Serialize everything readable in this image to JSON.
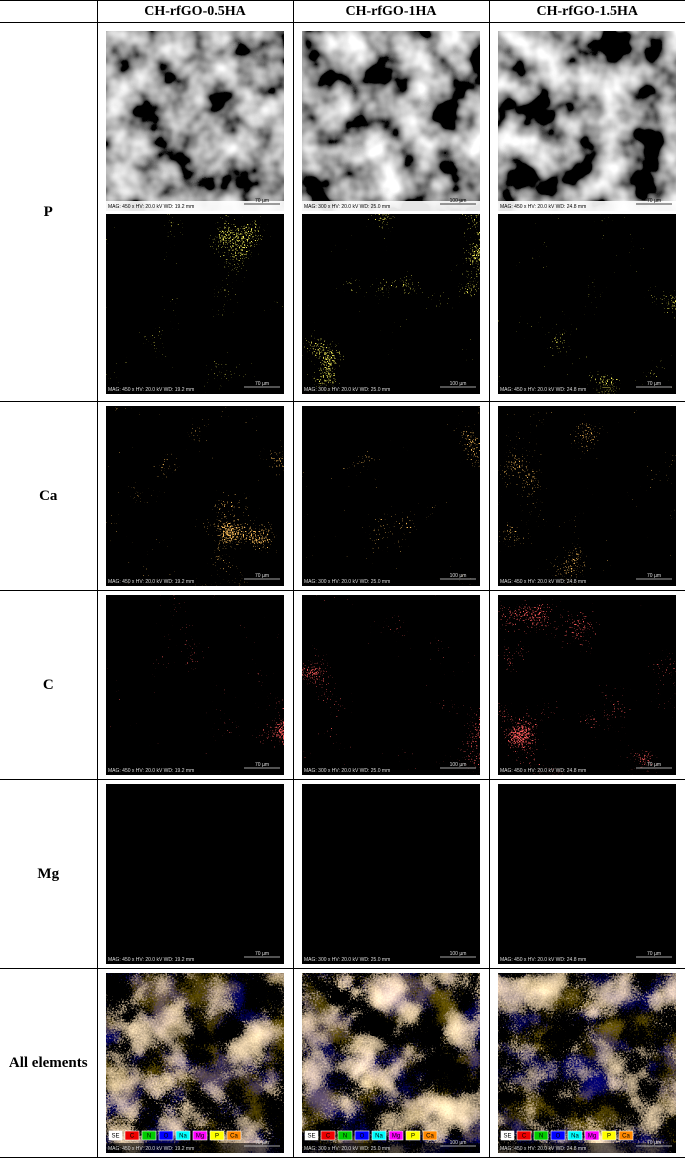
{
  "table": {
    "columns": [
      "CH-rfGO-0.5HA",
      "CH-rfGO-1HA",
      "CH-rfGO-1.5HA"
    ],
    "image_info": [
      {
        "info": "MAG: 450 x   HV: 20.0 kV   WD: 19.2 mm",
        "scale": "70 µm"
      },
      {
        "info": "MAG: 300 x   HV: 20.0 kV   WD: 25.0 mm",
        "scale": "100 µm"
      },
      {
        "info": "MAG: 450 x   HV: 20.0 kV   WD: 24.8 mm",
        "scale": "70 µm"
      }
    ],
    "rows": [
      {
        "label": "P"
      },
      {
        "label": "Ca"
      },
      {
        "label": "C"
      },
      {
        "label": "Mg"
      },
      {
        "label": "All elements"
      }
    ],
    "legend": [
      "SE",
      "C",
      "N",
      "O",
      "Na",
      "Mg",
      "P",
      "Ca"
    ]
  }
}
